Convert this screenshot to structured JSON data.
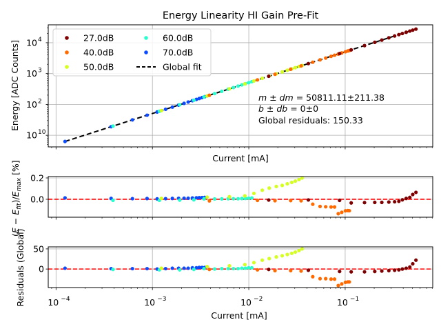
{
  "chart_data": [
    {
      "type": "scatter",
      "title": "Energy Linearity HI Gain Pre-Fit",
      "xlabel": "Current [mA]",
      "ylabel": "Energy [ADC Counts]",
      "xscale": "log",
      "yscale": "log",
      "xlim": [
        8.3e-05,
        0.81
      ],
      "ylim": [
        4.2,
        38000
      ],
      "yticks": [
        10,
        100,
        1000,
        10000
      ],
      "ytick_labels": [
        "10",
        "2",
        "3",
        "4"
      ],
      "grid": true,
      "legend": {
        "placement": "top-left",
        "columns": 2,
        "entries": [
          {
            "label": "27.0dB",
            "color": "#7f0000",
            "kind": "marker"
          },
          {
            "label": "40.0dB",
            "color": "#ff6a00",
            "kind": "marker"
          },
          {
            "label": "50.0dB",
            "color": "#d4ff1f",
            "kind": "marker"
          },
          {
            "label": "60.0dB",
            "color": "#29ffce",
            "kind": "marker"
          },
          {
            "label": "70.0dB",
            "color": "#0d4bff",
            "kind": "marker"
          },
          {
            "label": "Global fit",
            "color": "#000000",
            "kind": "dashed-line"
          }
        ]
      },
      "fit": {
        "slope": 50811.11,
        "intercept": 0
      },
      "annotation": {
        "line1": "m ± dm = 50811.11±211.38",
        "line1_m": "m",
        "line1_pm1": " ± ",
        "line1_dm": "dm",
        "line1_rest": " = 50811.11±211.38",
        "line2_b": "b",
        "line2_pm1": " ± ",
        "line2_db": "db",
        "line2_rest": " = 0±0",
        "line3": "Global residuals: 150.33"
      }
    },
    {
      "type": "scatter",
      "title": "",
      "xlabel": "Current [mA]",
      "ylabel_prefix": "(E",
      "ylabel": "(E − E_fit)/E_max [%]",
      "xscale": "log",
      "ylim": [
        -0.168,
        0.213
      ],
      "yticks": [
        0.0,
        0.2
      ],
      "ytick_labels": [
        "0.0",
        "0.2"
      ],
      "reference_line": {
        "y": 0,
        "color": "#ff0000",
        "style": "dashed"
      }
    },
    {
      "type": "scatter",
      "title": "",
      "xlabel": "Current [mA]",
      "ylabel": "Residuals (Global)",
      "xscale": "log",
      "ylim": [
        -46,
        55
      ],
      "yticks": [
        0,
        50
      ],
      "ytick_labels": [
        "0",
        "50"
      ],
      "xticks": [
        0.0001,
        0.001,
        0.01,
        0.1
      ],
      "xtick_labels": [
        "10",
        "10",
        "10",
        "10"
      ],
      "xtick_exponents": [
        "−4",
        "−3",
        "−2",
        "−1"
      ],
      "reference_line": {
        "y": 0,
        "color": "#ff0000",
        "style": "dashed"
      }
    }
  ],
  "series": [
    {
      "name": "27.0dB",
      "color": "#7f0000",
      "current": [
        0.0161,
        0.0415,
        0.0875,
        0.1155,
        0.1588,
        0.2028,
        0.2399,
        0.2839,
        0.3259,
        0.3607,
        0.3921,
        0.4297,
        0.4684,
        0.5026,
        0.5423
      ],
      "residual_pct": [
        -0.007,
        -0.006,
        -0.01,
        -0.034,
        -0.031,
        -0.029,
        -0.029,
        -0.026,
        -0.023,
        -0.019,
        -0.005,
        0.008,
        0.018,
        0.045,
        0.065
      ],
      "residual_global": [
        -1,
        -3,
        -6,
        -7,
        -7,
        -6,
        -5,
        -4,
        -3,
        -2,
        0,
        2,
        5,
        13,
        22
      ]
    },
    {
      "name": "40.0dB",
      "color": "#ff6a00",
      "current": [
        0.0039,
        0.0123,
        0.0187,
        0.0272,
        0.0349,
        0.0461,
        0.0549,
        0.0628,
        0.0714,
        0.0776,
        0.0848,
        0.0922,
        0.1006,
        0.1066,
        0.1104
      ],
      "residual_pct": [
        -0.015,
        -0.01,
        -0.013,
        -0.012,
        -0.014,
        -0.046,
        -0.067,
        -0.07,
        -0.072,
        -0.072,
        -0.135,
        -0.122,
        -0.108,
        -0.106,
        -0.107
      ],
      "residual_global": [
        -1,
        -2,
        -4,
        -4,
        -5,
        -19,
        -24,
        -24,
        -25,
        -25,
        -41,
        -37,
        -33,
        -32,
        -32
      ]
    },
    {
      "name": "50.0dB",
      "color": "#d4ff1f",
      "current": [
        0.00124,
        0.0037,
        0.0063,
        0.0091,
        0.0113,
        0.0138,
        0.0163,
        0.0193,
        0.0222,
        0.0251,
        0.0279,
        0.0304,
        0.0332,
        0.0358
      ],
      "residual_pct": [
        0.008,
        0.02,
        0.024,
        0.032,
        0.055,
        0.085,
        0.105,
        0.12,
        0.13,
        0.145,
        0.158,
        0.17,
        0.185,
        0.2
      ],
      "residual_global": [
        2,
        6,
        8,
        11,
        16,
        22,
        26,
        30,
        33,
        36,
        39,
        42,
        46,
        50
      ]
    },
    {
      "name": "60.0dB",
      "color": "#29ffce",
      "current": [
        0.00039,
        0.00118,
        0.00192,
        0.00269,
        0.00343,
        0.00442,
        0.00524,
        0.00611,
        0.00693,
        0.00774,
        0.00848,
        0.00922,
        0.00998,
        0.01075
      ],
      "residual_pct": [
        -0.01,
        -0.01,
        -0.008,
        -0.005,
        0.004,
        0.003,
        0.004,
        0.005,
        0.005,
        0.005,
        0.007,
        0.008,
        0.01,
        0.012
      ],
      "residual_global": [
        -1,
        -2,
        -2,
        -1,
        1,
        0,
        1,
        1,
        1,
        1,
        2,
        2,
        3,
        3
      ]
    },
    {
      "name": "70.0dB",
      "color": "#0d4bff",
      "current": [
        0.000124,
        0.000373,
        0.00062,
        0.00088,
        0.00112,
        0.00137,
        0.00161,
        0.00187,
        0.00213,
        0.00235,
        0.0026,
        0.00286,
        0.00306,
        0.00327,
        0.00349
      ],
      "residual_pct": [
        0.013,
        0.008,
        0.006,
        0.007,
        0.004,
        0.006,
        0.008,
        0.009,
        0.01,
        0.01,
        0.012,
        0.014,
        0.015,
        0.016,
        0.018
      ],
      "residual_global": [
        2,
        1,
        1,
        1,
        0,
        1,
        2,
        2,
        2,
        2,
        3,
        3,
        4,
        4,
        4
      ]
    }
  ]
}
